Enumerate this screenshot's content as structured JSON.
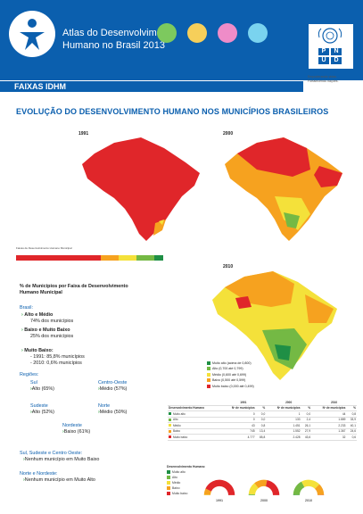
{
  "header": {
    "title_line1": "Atlas do Desenvolvimento",
    "title_line2": "Humano no Brasil 2013",
    "dot_colors": [
      "#7dc95e",
      "#f6cf5a",
      "#ef8cc8",
      "#7ad3ef"
    ],
    "pnud_letters": [
      "P",
      "N",
      "U",
      "D"
    ],
    "tagline_line1": "Empoderando vidas.",
    "tagline_line2": "Fortalecendo nações.",
    "brand_color": "#0b5fae",
    "logo_icon": "person-icon",
    "undp_icon": "un-emblem-icon"
  },
  "band": {
    "label": "FAIXAS IDHM"
  },
  "main_title": "EVOLUÇÃO DO DESENVOLVIMENTO HUMANO NOS MUNICÍPIOS BRASILEIROS",
  "maps": {
    "year_1991": "1991",
    "year_2000": "2000",
    "year_2010": "2010",
    "legend_caption": "Faixas de Desenvolvimento Humano Municipal",
    "scale_colors": [
      "#e0262a",
      "#f6a21f",
      "#f4e13a",
      "#74b944",
      "#1f8f45"
    ]
  },
  "left": {
    "heading_line1": "% de Municípios por Faixa de Desenvolvimento",
    "heading_line2": "Humano Municipal",
    "brasil_label": "Brasil:",
    "alto_medio": "Alto e Médio",
    "alto_medio_pct": "74% dos municípios",
    "baixo_muito_baixo": "Baixo e Muito Baixo",
    "baixo_pct": "25% dos municípios",
    "muito_baixo": "Muito Baixo:",
    "mb_1991": "- 1991: 85,8% municípios",
    "mb_2010": "- 2010: 0,6% municípios",
    "regioes": "Regiões:",
    "sul": "Sul",
    "sul_val": "Alto (65%)",
    "centro_oeste": "Centro-Oeste",
    "co_val": "Médio (57%)",
    "sudeste": "Sudeste",
    "se_val": "Alto (52%)",
    "norte": "Norte",
    "norte_val": "Médio (50%)",
    "nordeste": "Nordeste",
    "ne_val": "Baixo (61%)",
    "ssco": "Sul, Sudeste e Centro Oeste:",
    "ssco_val": "Nenhum município em Muito Baixo",
    "nn": "Norte e Nordeste:",
    "nn_val": "Nenhum município em Muito Alto"
  },
  "map_legend": [
    {
      "label": "Muito alto (acima de 0,800)",
      "color": "#1f8f45"
    },
    {
      "label": "Alto (0,700 até 0,799)",
      "color": "#74b944"
    },
    {
      "label": "Médio (0,600 até 0,699)",
      "color": "#f4e13a"
    },
    {
      "label": "Baixo (0,500 até 0,599)",
      "color": "#f6a21f"
    },
    {
      "label": "Muito baixo (0,000 até 0,499)",
      "color": "#e0262a"
    }
  ],
  "table": {
    "year_1991": "1991",
    "year_2000": "2000",
    "year_2010": "2010",
    "col_faixa": "Desenvolvimento Humano",
    "col_n": "Nº de municípios",
    "col_pct": "%",
    "rows": [
      {
        "faixa": "Muito alto",
        "n1991": "0",
        "p1991": "0,0",
        "n2000": "1",
        "p2000": "0,0",
        "n2010": "44",
        "p2010": "0,8"
      },
      {
        "faixa": "Alto",
        "n1991": "0",
        "p1991": "0,0",
        "n2000": "133",
        "p2000": "2,4",
        "n2010": "1.889",
        "p2010": "33,9"
      },
      {
        "faixa": "Médio",
        "n1991": "43",
        "p1991": "0,8",
        "n2000": "1.451",
        "p2000": "26,1",
        "n2010": "2.233",
        "p2010": "40,1"
      },
      {
        "faixa": "Baixo",
        "n1991": "745",
        "p1991": "13,4",
        "n2000": "1.552",
        "p2000": "27,9",
        "n2010": "1.367",
        "p2010": "24,6"
      },
      {
        "faixa": "Muito baixo",
        "n1991": "4.777",
        "p1991": "85,8",
        "n2000": "2.428",
        "p2000": "43,6",
        "n2010": "32",
        "p2010": "0,6"
      }
    ]
  },
  "gauges": {
    "legend_title": "Desenvolvimento Humano",
    "legend_items": [
      {
        "label": "Muito alto",
        "color": "#1f8f45"
      },
      {
        "label": "Alto",
        "color": "#74b944"
      },
      {
        "label": "Médio",
        "color": "#f4e13a"
      },
      {
        "label": "Baixo",
        "color": "#f6a21f"
      },
      {
        "label": "Muito baixo",
        "color": "#e0262a"
      }
    ],
    "years": [
      {
        "year": "1991",
        "shares": [
          0,
          0,
          0.8,
          13.4,
          85.8
        ]
      },
      {
        "year": "2000",
        "shares": [
          0,
          2.4,
          26.1,
          27.9,
          43.6
        ]
      },
      {
        "year": "2010",
        "shares": [
          0.8,
          33.9,
          40.1,
          24.6,
          0.6
        ]
      }
    ]
  }
}
